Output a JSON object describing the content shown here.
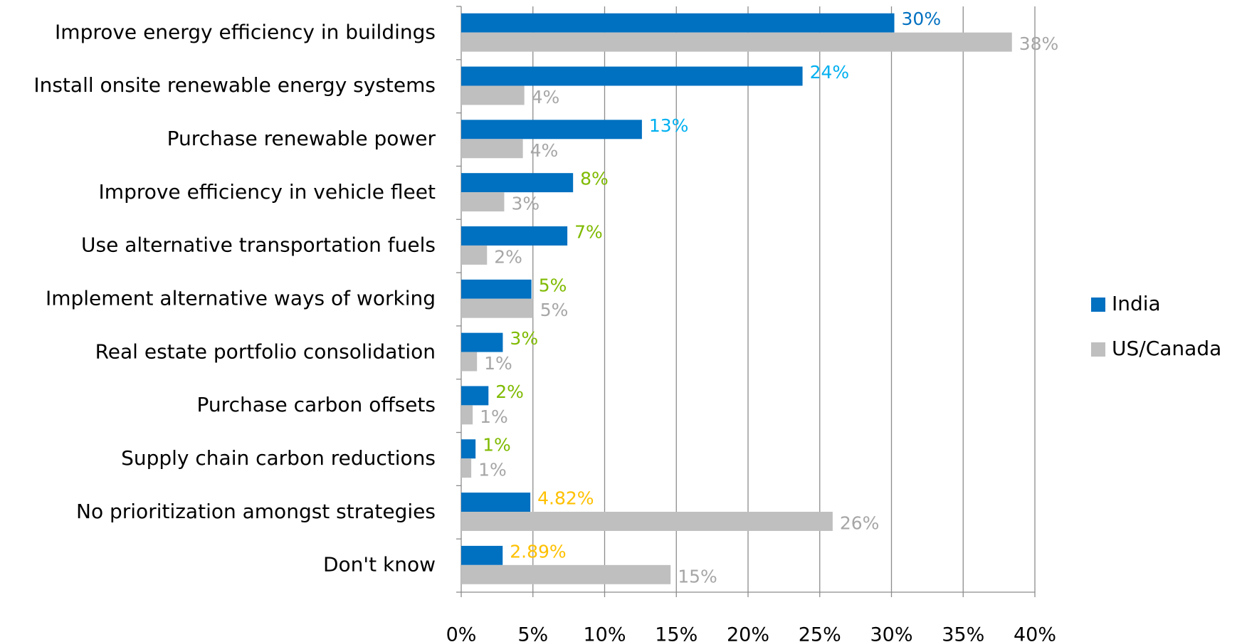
{
  "chart_data": {
    "type": "hbar",
    "categories": [
      "Improve energy efficiency in buildings",
      "Install onsite renewable energy systems",
      "Purchase renewable power",
      "Improve efficiency in vehicle fleet",
      "Use alternative transportation fuels",
      "Implement alternative ways of working",
      "Real estate portfolio consolidation",
      "Purchase carbon offsets",
      "Supply chain carbon reductions",
      "No prioritization amongst strategies",
      "Don't know"
    ],
    "series": [
      {
        "name": "India",
        "color": "#0070c0",
        "values": [
          30.2,
          23.8,
          12.6,
          7.8,
          7.4,
          4.9,
          2.9,
          1.9,
          1.0,
          4.82,
          2.89
        ],
        "value_labels": [
          "30%",
          "24%",
          "13%",
          "8%",
          "7%",
          "5%",
          "3%",
          "2%",
          "1%",
          "4.82%",
          "2.89%"
        ],
        "label_colors": [
          "#0070c0",
          "#00b0f0",
          "#00b0f0",
          "#7fba00",
          "#7fba00",
          "#7fba00",
          "#7fba00",
          "#7fba00",
          "#7fba00",
          "#ffc000",
          "#ffc000"
        ]
      },
      {
        "name": "US/Canada",
        "color": "#bfbfbf",
        "values": [
          38.4,
          4.4,
          4.3,
          3.0,
          1.8,
          5.0,
          1.1,
          0.8,
          0.7,
          25.9,
          14.6
        ],
        "value_labels": [
          "38%",
          "4%",
          "4%",
          "3%",
          "2%",
          "5%",
          "1%",
          "1%",
          "1%",
          "26%",
          "15%"
        ],
        "label_colors": [
          "#a6a6a6",
          "#a6a6a6",
          "#a6a6a6",
          "#a6a6a6",
          "#a6a6a6",
          "#a6a6a6",
          "#a6a6a6",
          "#a6a6a6",
          "#a6a6a6",
          "#a6a6a6",
          "#a6a6a6"
        ]
      }
    ],
    "xlim": [
      0,
      40
    ],
    "xticks": [
      {
        "value": 0,
        "label": "0%"
      },
      {
        "value": 5,
        "label": "5%"
      },
      {
        "value": 10,
        "label": "10%"
      },
      {
        "value": 15,
        "label": "15%"
      },
      {
        "value": 20,
        "label": "20%"
      },
      {
        "value": 25,
        "label": "25%"
      },
      {
        "value": 30,
        "label": "30%"
      },
      {
        "value": 35,
        "label": "35%"
      },
      {
        "value": 40,
        "label": "40%"
      }
    ],
    "grid": true,
    "legend": "right"
  }
}
